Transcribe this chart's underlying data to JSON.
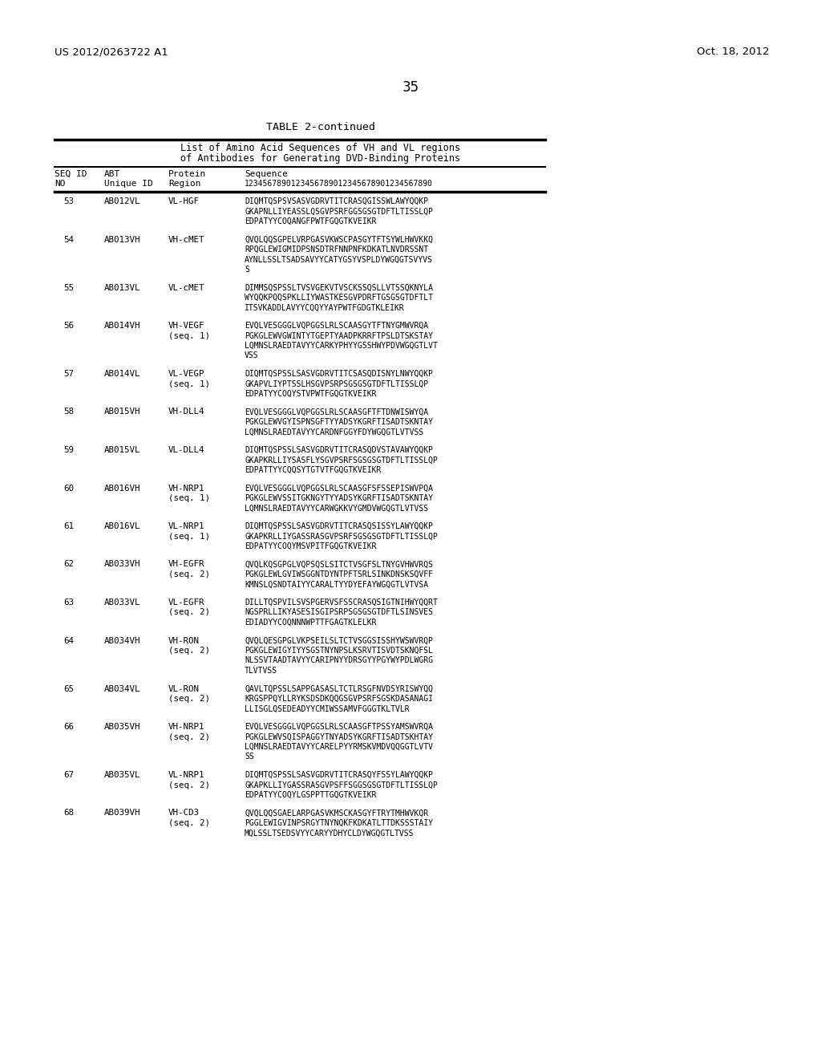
{
  "background_color": "#ffffff",
  "page_header_left": "US 2012/0263722 A1",
  "page_header_right": "Oct. 18, 2012",
  "page_number": "35",
  "table_title": "TABLE 2-continued",
  "table_subtitle1": "List of Amino Acid Sequences of VH and VL regions",
  "table_subtitle2": "of Antibodies for Generating DVD-Binding Proteins",
  "rows": [
    {
      "seq": "53",
      "id": "AB012VL",
      "protein": "VL-HGF",
      "protein2": "",
      "sequence": [
        "DIQMTQSPSVSASVGDRVTITCRASQGISSWLAWYQQKP",
        "GKAPNLLIYEASSLQSGVPSRFGGSGSGTDFTLTISSLQP",
        "EDPATYYCOQANGFPWTFGQGTKVEIKR"
      ]
    },
    {
      "seq": "54",
      "id": "AB013VH",
      "protein": "VH-cMET",
      "protein2": "",
      "sequence": [
        "QVQLQQSGPELVRPGASVKWSCPASGYTFTSYWLHWVKKQ",
        "RPQGLEWIGMIDPSNSDTRFNNPNFKDKATLNVDRSSNT",
        "AYNLLSSLTSADSAVYYCATYGSYVSPLDYWGQGTSVYVS",
        "S"
      ]
    },
    {
      "seq": "55",
      "id": "AB013VL",
      "protein": "VL-cMET",
      "protein2": "",
      "sequence": [
        "DIMMSQSPSSLTVSVGEKVTVSCKSSQSLLVTSSQKNYLA",
        "WYQQKPQQSPKLLIYWASTKESGVPDRFTGSGSGTDFTLT",
        "ITSVKADDLAVYYCQQYYAYPWTFGDGTKLEIKR"
      ]
    },
    {
      "seq": "56",
      "id": "AB014VH",
      "protein": "VH-VEGF",
      "protein2": "(seq. 1)",
      "sequence": [
        "EVQLVESGGGLVQPGGSLRLSCAASGYTFTNYGMWVRQA",
        "PGKGLEWVGWINTYTGEPTYAADPKRRFTPSLDTSKSTAY",
        "LQMNSLRAEDTAVYYCARKYPHYYGSSHWYPDVWGQGTLVT",
        "VSS"
      ]
    },
    {
      "seq": "57",
      "id": "AB014VL",
      "protein": "VL-VEGP",
      "protein2": "(seq. 1)",
      "sequence": [
        "DIQMTQSPSSLSASVGDRVTITCSASQDISNYLNWYQQKP",
        "GKAPVLIYPTSSLHSGVPSRPSGSGSGTDFTLTISSLQP",
        "EDPATYYCOQYSTVPWTFGQGTKVEIKR"
      ]
    },
    {
      "seq": "58",
      "id": "AB015VH",
      "protein": "VH-DLL4",
      "protein2": "",
      "sequence": [
        "EVQLVESGGGLVQPGGSLRLSCAASGFTFTDNWISWYQA",
        "PGKGLEWVGYISPNSGFTYYADSYKGRFTISADTSKNTAY",
        "LQMNSLRAEDTAVYYCARDNFGGYFDYWGQGTLVTVSS"
      ]
    },
    {
      "seq": "59",
      "id": "AB015VL",
      "protein": "VL-DLL4",
      "protein2": "",
      "sequence": [
        "DIQMTQSPSSLSASVGDRVTITCRASQDVSTAVAWYQQKP",
        "GKAPKRLLIYSASFLYSGVPSRFSGSGSGTDFTLTISSLQP",
        "EDPATTYYCQQSYTGTVTFGQGTKVEIKR"
      ]
    },
    {
      "seq": "60",
      "id": "AB016VH",
      "protein": "VH-NRP1",
      "protein2": "(seq. 1)",
      "sequence": [
        "EVQLVESGGGLVQPGGSLRLSCAASGFSFSSEPISWVPQA",
        "PGKGLEWVSSITGKNGYTYYADSYKGRFTISADTSKNTAY",
        "LQMNSLRAEDTAVYYCARWGKKVYGMDVWGQGTLVTVSS"
      ]
    },
    {
      "seq": "61",
      "id": "AB016VL",
      "protein": "VL-NRP1",
      "protein2": "(seq. 1)",
      "sequence": [
        "DIQMTQSPSSLSASVGDRVTITCRASQSISSYLAWYQQKP",
        "GKAPKRLLIYGASSRASGVPSRFSGSGSGTDFTLTISSLQP",
        "EDPATYYCOQYMSVPITFGQGTKVEIKR"
      ]
    },
    {
      "seq": "62",
      "id": "AB033VH",
      "protein": "VH-EGFR",
      "protein2": "(seq. 2)",
      "sequence": [
        "QVQLKQSGPGLVQPSQSLSITCTVSGFSLTNYGVHWVRQS",
        "PGKGLEWLGVIWSGGNTDYNTPFTSRLSINKDNSKSQVFF",
        "KMNSLQSNDTAIYYCARALTYYDYEFAYWGQGTLVTVSA"
      ]
    },
    {
      "seq": "63",
      "id": "AB033VL",
      "protein": "VL-EGFR",
      "protein2": "(seq. 2)",
      "sequence": [
        "DILLTQSPVILSVSPGERVSFSSCRASQSIGTNIHWYQQRT",
        "NGSPRLLIKYASESISGIPSRPSGSGSGTDFTLSINSVES",
        "EDIADYYCOQNNNWPTTFGAGTKLELKR"
      ]
    },
    {
      "seq": "64",
      "id": "AB034VH",
      "protein": "VH-RON",
      "protein2": "(seq. 2)",
      "sequence": [
        "QVQLQESGPGLVKPSEILSLTCTVSGGSISSHYWSWVRQP",
        "PGKGLEWIGYIYYSGSTNYNPSLKSRVTISVDTSKNQFSL",
        "NLSSVTAADTAVYYCARIPNYYDRSGYYPGYWYPDLWGRG",
        "TLVTVSS"
      ]
    },
    {
      "seq": "65",
      "id": "AB034VL",
      "protein": "VL-RON",
      "protein2": "(seq. 2)",
      "sequence": [
        "QAVLTQPSSLSAPPGASASLTCTLRSGFNVDSYRISWYQQ",
        "KRGSPPQYLLRYKSDSDKQQGSGVPSRFSGSKDASANAGI",
        "LLISGLQSEDEADYYCMIWSSAMVFGGGTKLTVLR"
      ]
    },
    {
      "seq": "66",
      "id": "AB035VH",
      "protein": "VH-NRP1",
      "protein2": "(seq. 2)",
      "sequence": [
        "EVQLVESGGGLVQPGGSLRLSCAASGFTPSSYAMSWVRQA",
        "PGKGLEWVSQISPAGGYTNYADSYKGRFTISADTSKHTAY",
        "LQMNSLRAEDTAVYYCARELPYYRMSKVMDVQQGGTLVTV",
        "SS"
      ]
    },
    {
      "seq": "67",
      "id": "AB035VL",
      "protein": "VL-NRP1",
      "protein2": "(seq. 2)",
      "sequence": [
        "DIQMTQSPSSLSASVGDRVTITCRASQYFSSYLAWYQQKP",
        "GKAPKLLIYGASSRASGVPSFFSGGSGSGTDFTLTISSLQP",
        "EDPATYYCOQYLGSPPTTGQGTKVEIKR"
      ]
    },
    {
      "seq": "68",
      "id": "AB039VH",
      "protein": "VH-CD3",
      "protein2": "(seq. 2)",
      "sequence": [
        "QVQLQQSGAELARPGASVKMSCKASGYFTRYTMHWVKQR",
        "PGGLEWIGVINPSRGYTNYNQKFKDKATLTTDKSSSTAIY",
        "MQLSSLTSEDSVYYCARYYDHYCLDYWGQGTLTVSS"
      ]
    }
  ]
}
